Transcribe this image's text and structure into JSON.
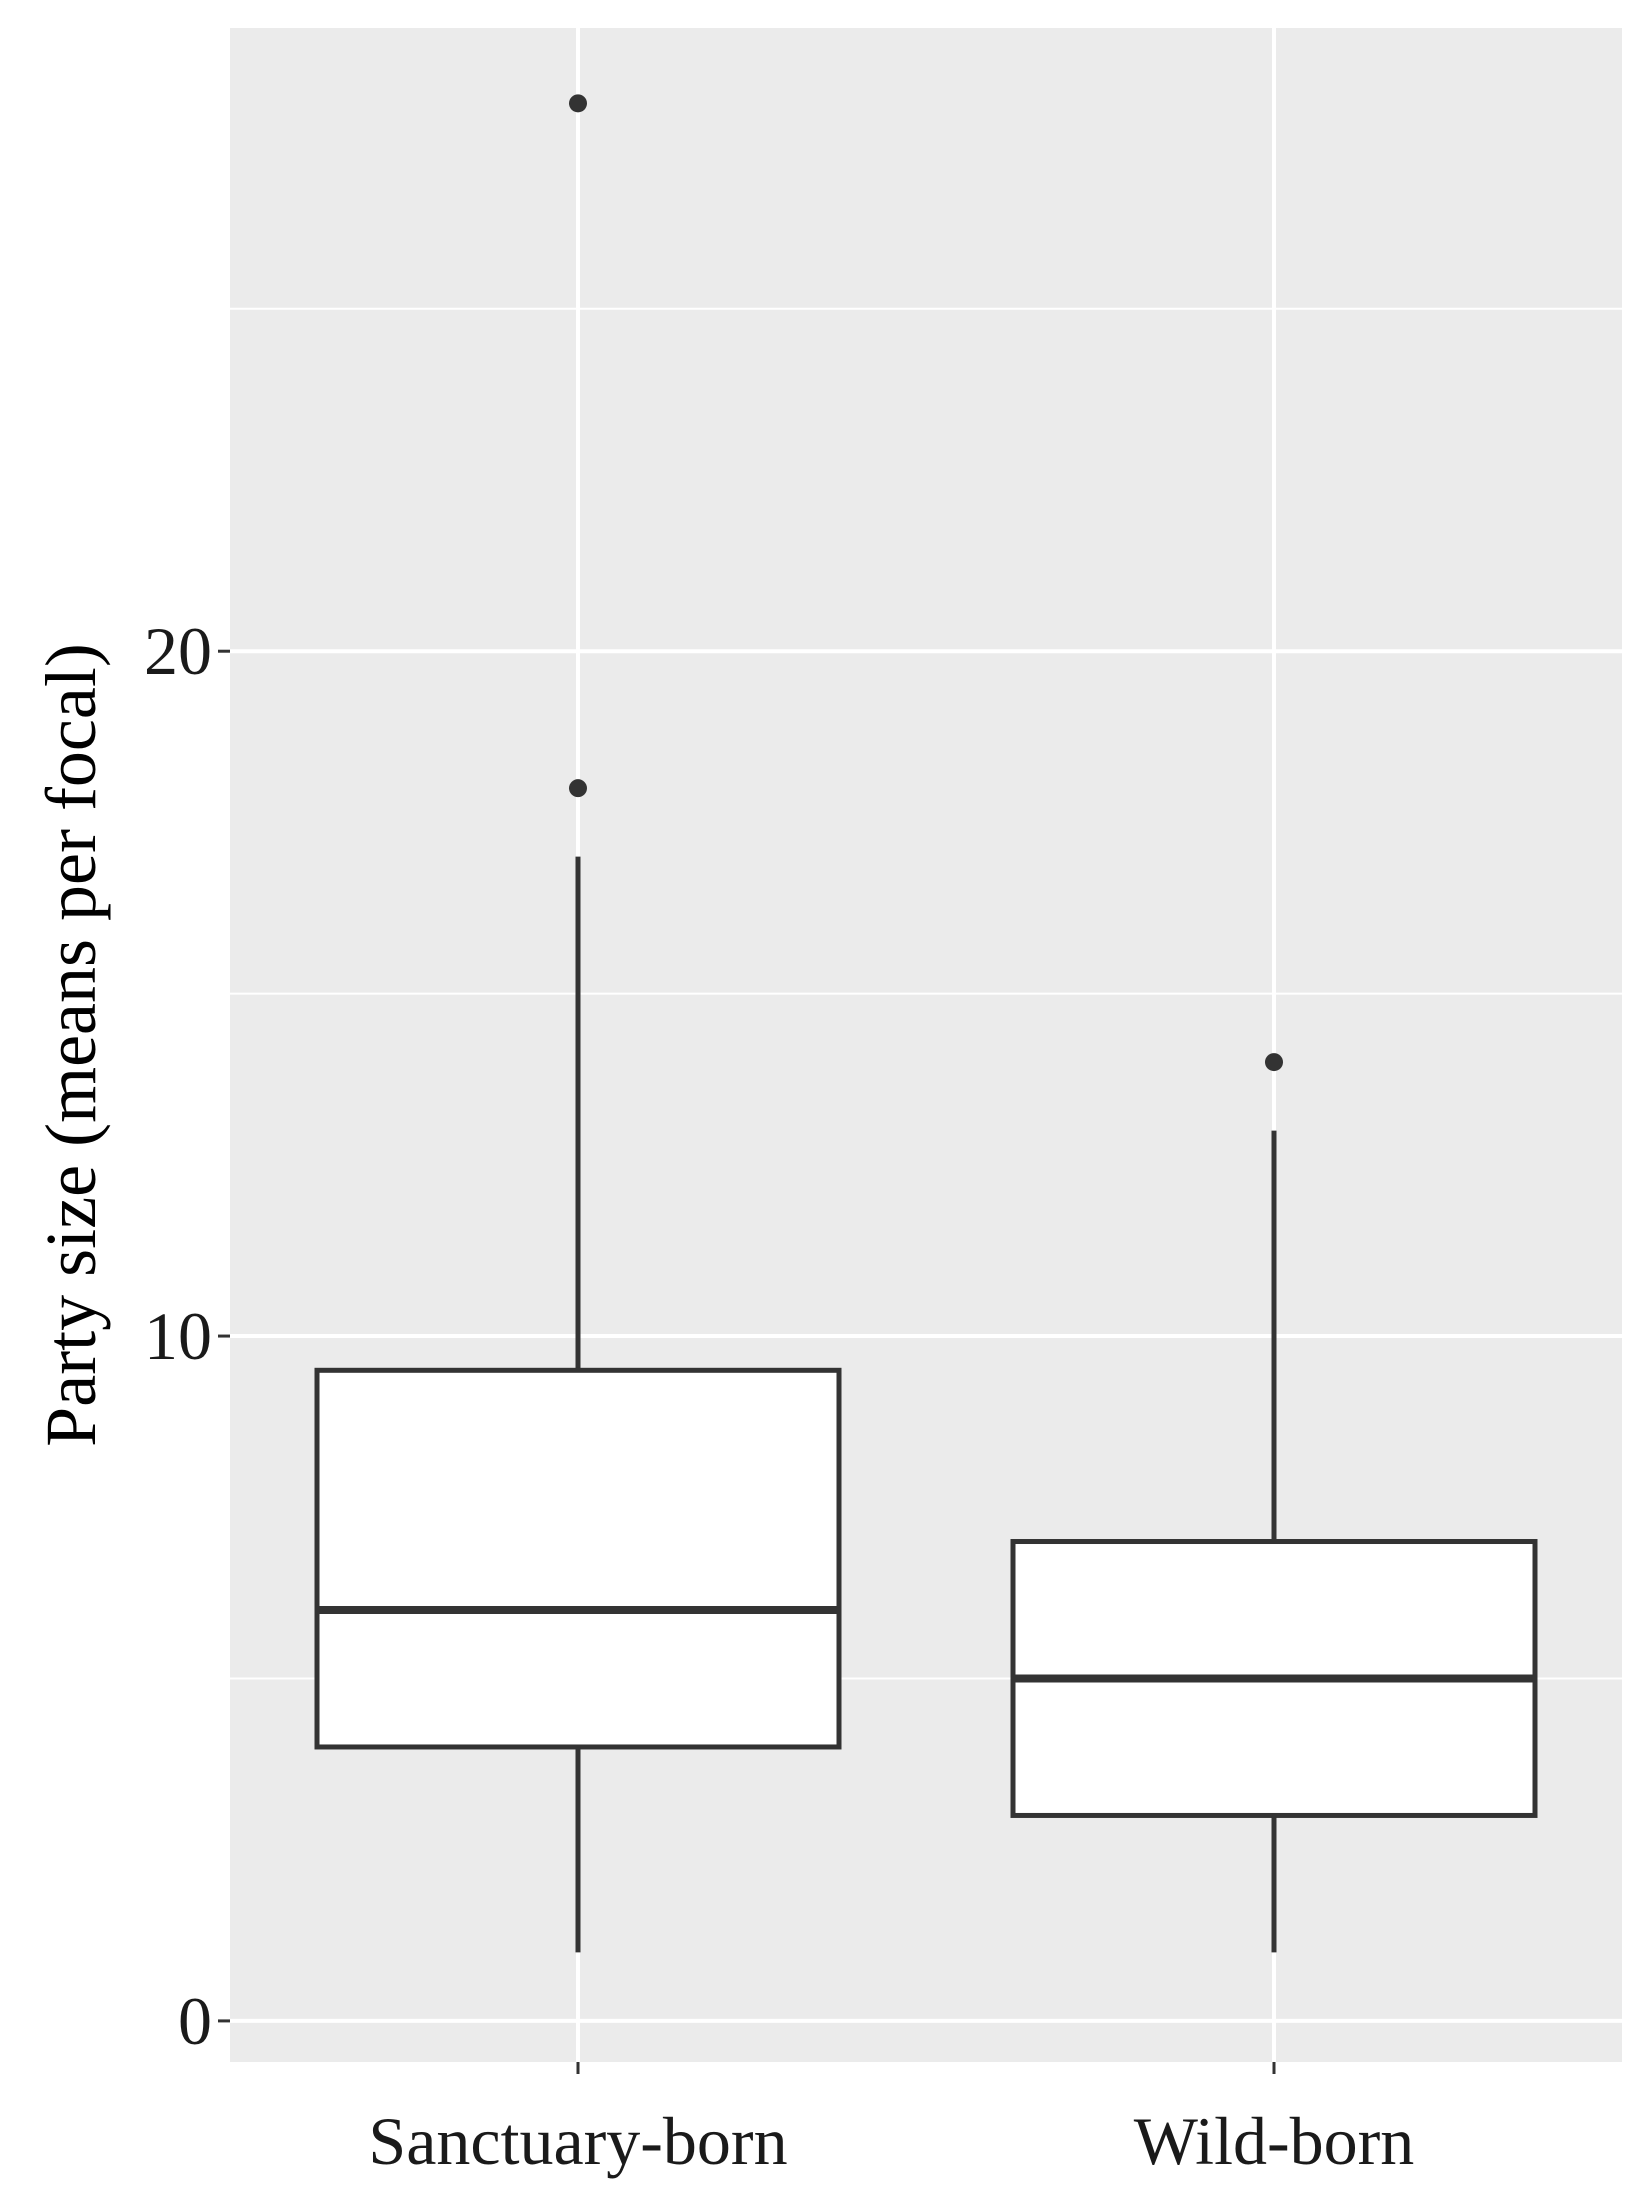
{
  "chart_data": {
    "type": "boxplot",
    "title": "",
    "xlabel": "",
    "ylabel": "Party size (means per focal)",
    "categories": [
      "Sanctuary-born",
      "Wild-born"
    ],
    "ylim": [
      -0.6,
      29.1
    ],
    "yticks": [
      0,
      10,
      20
    ],
    "ytick_labels": [
      "0",
      "10",
      "20"
    ],
    "grid": true,
    "colors": {
      "panel": "#ebebeb",
      "grid": "#ffffff",
      "box_fill": "#ffffff",
      "box_stroke": "#333333"
    },
    "boxes": [
      {
        "category": "Sanctuary-born",
        "whisker_low": 1.0,
        "q1": 4.0,
        "median": 6.0,
        "q3": 9.5,
        "whisker_high": 17.0,
        "outliers": [
          18.0,
          28.0
        ]
      },
      {
        "category": "Wild-born",
        "whisker_low": 1.0,
        "q1": 3.0,
        "median": 5.0,
        "q3": 7.0,
        "whisker_high": 13.0,
        "outliers": [
          14.0
        ]
      }
    ]
  }
}
